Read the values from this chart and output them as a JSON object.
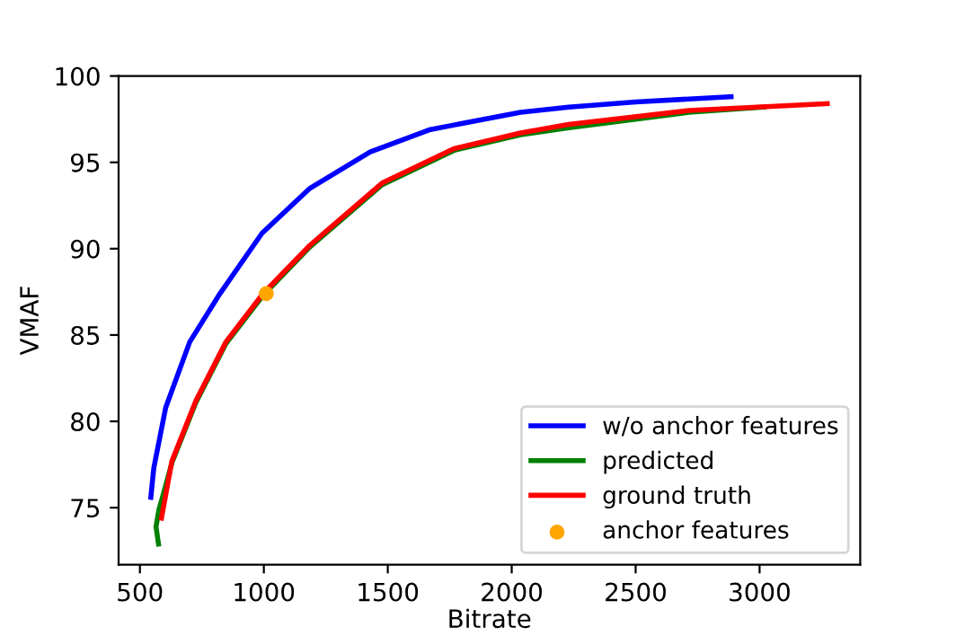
{
  "chart_data": {
    "type": "line",
    "xlabel": "Bitrate",
    "ylabel": "VMAF",
    "xlim": [
      414,
      3406
    ],
    "ylim": [
      71.7,
      100.0
    ],
    "xticks": [
      500,
      1000,
      1500,
      2000,
      2500,
      3000
    ],
    "yticks": [
      75,
      80,
      85,
      90,
      95,
      100
    ],
    "grid": false,
    "legend": "bottom right",
    "series": [
      {
        "name": "w/o anchor features",
        "color": "#0000ff",
        "x": [
          544,
          556,
          604,
          701,
          823,
          993,
          1186,
          1429,
          1672,
          2036,
          2230,
          2500,
          2885
        ],
        "values": [
          75.6,
          77.3,
          80.8,
          84.6,
          87.4,
          90.9,
          93.5,
          95.6,
          96.9,
          97.9,
          98.2,
          98.5,
          98.8
        ]
      },
      {
        "name": "predicted",
        "color": "#008000",
        "x": [
          575,
          565,
          577,
          587,
          629,
          726,
          847,
          997,
          1186,
          1477,
          1769,
          2036,
          2230,
          2715,
          3018
        ],
        "values": [
          72.9,
          73.9,
          74.9,
          75.4,
          77.6,
          81.1,
          84.5,
          87.3,
          90.1,
          93.7,
          95.7,
          96.6,
          97.0,
          97.9,
          98.2
        ]
      },
      {
        "name": "ground truth",
        "color": "#ff0000",
        "x": [
          587,
          629,
          726,
          847,
          997,
          1186,
          1477,
          1769,
          2036,
          2230,
          2715,
          3273
        ],
        "values": [
          74.4,
          77.7,
          81.2,
          84.6,
          87.4,
          90.2,
          93.8,
          95.8,
          96.7,
          97.2,
          98.0,
          98.4
        ]
      },
      {
        "name": "anchor features",
        "type": "scatter",
        "color": "#ffa500",
        "x": [
          1010
        ],
        "values": [
          87.4
        ]
      }
    ]
  }
}
